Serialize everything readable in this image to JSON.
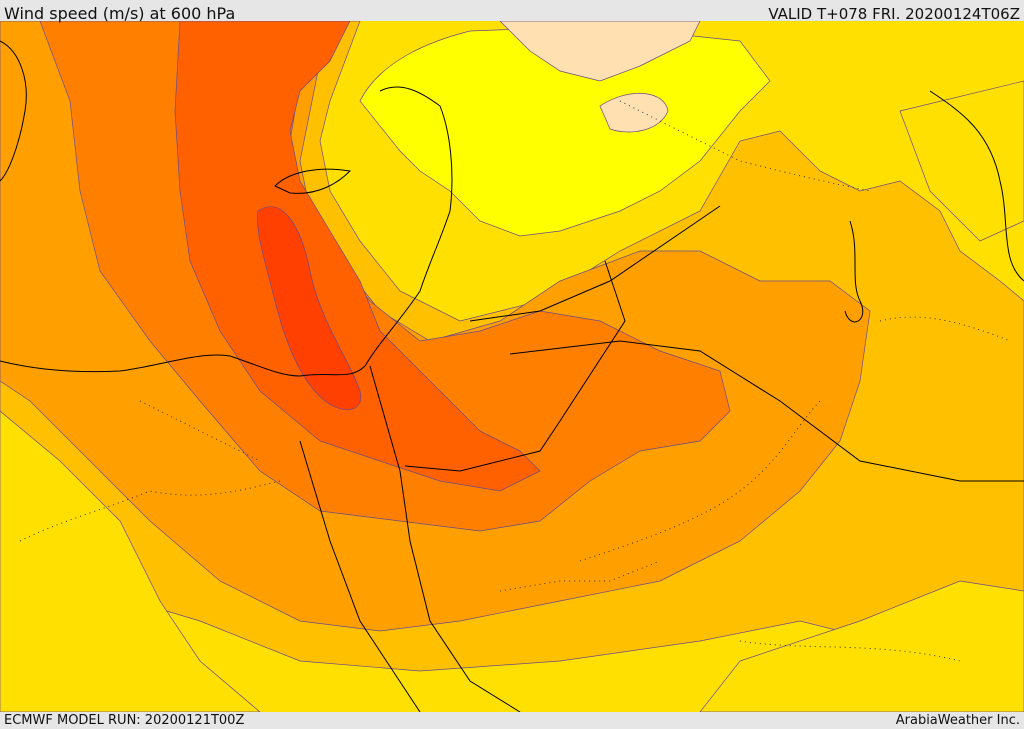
{
  "header": {
    "title": "Wind speed (m/s) at 600 hPa",
    "valid": "VALID T+078 FRI. 20200124T06Z"
  },
  "footer": {
    "model_run": "ECMWF MODEL RUN: 20200121T00Z",
    "credit": "ArabiaWeather Inc."
  },
  "map": {
    "field": "wind speed",
    "level": "600 hPa",
    "palette": {
      "calm": "#ffe0b0",
      "lowest": "#ffff00",
      "low": "#ffe000",
      "low_mid": "#ffc000",
      "mid": "#ffa000",
      "mid_high": "#ff8000",
      "high": "#ff6000",
      "highest": "#ff4000",
      "contour": "#6a4a8a",
      "coastline": "#000000"
    }
  }
}
